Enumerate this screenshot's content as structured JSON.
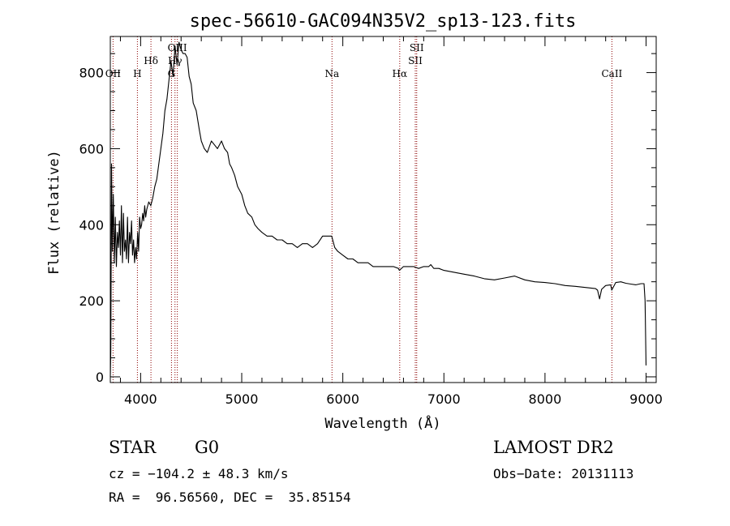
{
  "chart_data": {
    "type": "line",
    "title": "spec-56610-GAC094N35V2_sp13-123.fits",
    "xlabel": "Wavelength (Å)",
    "ylabel": "Flux (relative)",
    "xlim": [
      3700,
      9100
    ],
    "ylim": [
      -15,
      895
    ],
    "xticks": [
      4000,
      5000,
      6000,
      7000,
      8000,
      9000
    ],
    "yticks": [
      0,
      200,
      400,
      600,
      800
    ],
    "grid": false,
    "series": [
      {
        "x": [
          3700,
          3705,
          3712,
          3720,
          3730,
          3740,
          3750,
          3760,
          3770,
          3780,
          3790,
          3800,
          3810,
          3820,
          3830,
          3840,
          3850,
          3860,
          3870,
          3880,
          3890,
          3900,
          3910,
          3920,
          3930,
          3940,
          3950,
          3960,
          3970,
          3980,
          3990,
          4000,
          4010,
          4020,
          4030,
          4040,
          4050,
          4060,
          4080,
          4100,
          4120,
          4140,
          4160,
          4180,
          4200,
          4220,
          4240,
          4260,
          4280,
          4300,
          4320,
          4340,
          4360,
          4380,
          4400,
          4420,
          4440,
          4460,
          4480,
          4500,
          4520,
          4550,
          4580,
          4600,
          4630,
          4660,
          4700,
          4730,
          4760,
          4800,
          4830,
          4860,
          4880,
          4900,
          4930,
          4960,
          5000,
          5030,
          5060,
          5100,
          5130,
          5160,
          5200,
          5250,
          5300,
          5350,
          5400,
          5450,
          5500,
          5550,
          5600,
          5650,
          5700,
          5750,
          5800,
          5850,
          5890,
          5900,
          5920,
          5950,
          6000,
          6050,
          6100,
          6150,
          6200,
          6250,
          6300,
          6350,
          6400,
          6450,
          6500,
          6550,
          6560,
          6600,
          6650,
          6700,
          6750,
          6800,
          6850,
          6870,
          6900,
          6950,
          7000,
          7100,
          7200,
          7300,
          7400,
          7500,
          7600,
          7700,
          7800,
          7900,
          8000,
          8100,
          8200,
          8300,
          8400,
          8500,
          8520,
          8540,
          8560,
          8600,
          8650,
          8660,
          8700,
          8750,
          8800,
          8850,
          8900,
          8950,
          8980,
          8990,
          9000
        ],
        "y": [
          0,
          70,
          560,
          330,
          480,
          300,
          420,
          290,
          380,
          340,
          410,
          320,
          450,
          300,
          430,
          330,
          360,
          310,
          420,
          300,
          380,
          350,
          410,
          320,
          360,
          300,
          340,
          310,
          380,
          330,
          420,
          390,
          400,
          430,
          410,
          450,
          420,
          440,
          460,
          450,
          470,
          500,
          520,
          560,
          600,
          640,
          700,
          730,
          780,
          830,
          790,
          870,
          820,
          880,
          860,
          850,
          850,
          840,
          790,
          770,
          720,
          700,
          650,
          620,
          600,
          590,
          620,
          610,
          600,
          620,
          600,
          590,
          560,
          550,
          530,
          500,
          480,
          450,
          430,
          420,
          400,
          390,
          380,
          370,
          370,
          360,
          360,
          350,
          350,
          340,
          350,
          350,
          340,
          350,
          370,
          370,
          370,
          360,
          340,
          330,
          320,
          310,
          310,
          300,
          300,
          300,
          290,
          290,
          290,
          290,
          290,
          285,
          280,
          290,
          290,
          290,
          285,
          290,
          290,
          295,
          285,
          285,
          280,
          275,
          270,
          265,
          258,
          255,
          260,
          265,
          255,
          250,
          248,
          245,
          240,
          238,
          235,
          232,
          228,
          205,
          230,
          240,
          242,
          228,
          248,
          250,
          246,
          244,
          242,
          245,
          245,
          200,
          30
        ]
      }
    ],
    "lines": [
      {
        "label": "OII",
        "x": 3727
      },
      {
        "label": "H",
        "x": 3968
      },
      {
        "label": "Hδ",
        "x": 4102
      },
      {
        "label": "G",
        "x": 4305
      },
      {
        "label": "Hγ",
        "x": 4340
      },
      {
        "label": "OIII",
        "x": 4363
      },
      {
        "label": "Na",
        "x": 5893
      },
      {
        "label": "Hα",
        "x": 6563
      },
      {
        "label": "SII",
        "x": 6717
      },
      {
        "label": "SII",
        "x": 6731
      },
      {
        "label": "CaII",
        "x": 8662
      }
    ]
  },
  "info": {
    "class": "STAR",
    "subclass": "G0",
    "survey": "LAMOST DR2",
    "cz": "cz = −104.2 ± 48.3 km/s",
    "obsdate": "Obs−Date: 20131113",
    "radec": "RA =  96.56560, DEC =  35.85154"
  }
}
